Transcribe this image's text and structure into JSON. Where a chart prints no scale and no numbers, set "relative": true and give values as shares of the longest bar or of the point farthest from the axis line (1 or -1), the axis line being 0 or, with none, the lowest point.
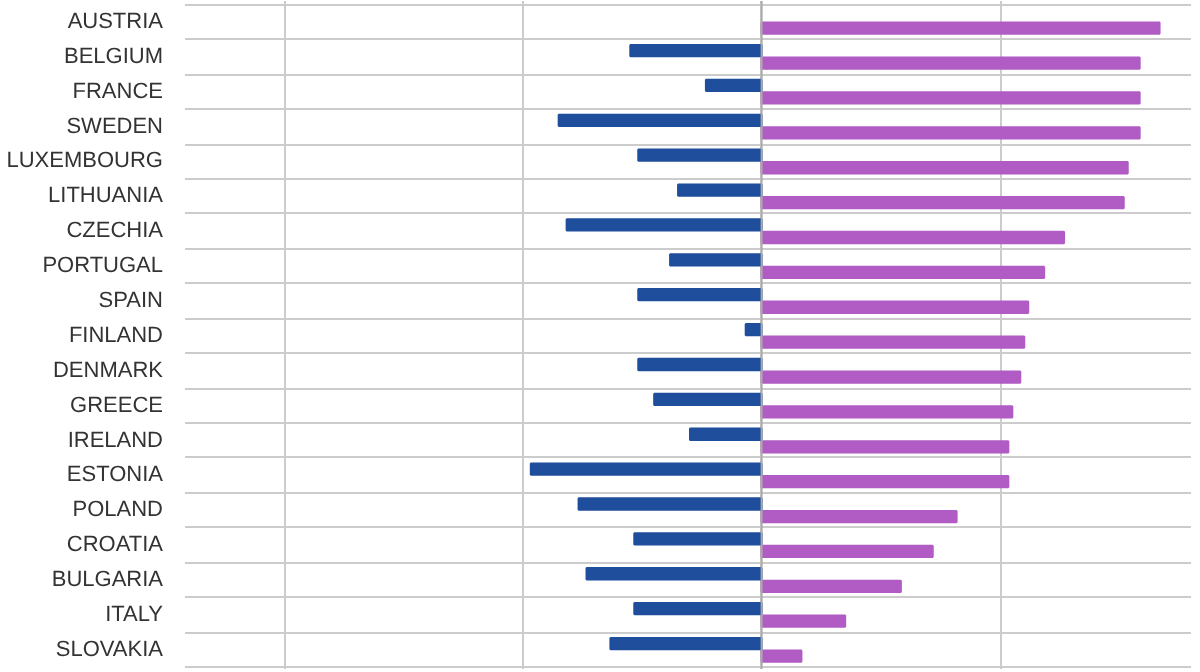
{
  "chart_data": {
    "type": "bar",
    "orientation": "horizontal",
    "relative": true,
    "grid": true,
    "categories": [
      "AUSTRIA",
      "BELGIUM",
      "FRANCE",
      "SWEDEN",
      "LUXEMBOURG",
      "LITHUANIA",
      "CZECHIA",
      "PORTUGAL",
      "SPAIN",
      "FINLAND",
      "DENMARK",
      "GREECE",
      "IRELAND",
      "ESTONIA",
      "POLAND",
      "CROATIA",
      "BULGARIA",
      "ITALY",
      "SLOVAKIA"
    ],
    "series": [
      {
        "color": "#1f4e9c",
        "values": [
          null,
          -0.33,
          -0.14,
          -0.51,
          -0.31,
          -0.21,
          -0.49,
          -0.23,
          -0.31,
          -0.04,
          -0.31,
          -0.27,
          -0.18,
          -0.58,
          -0.46,
          -0.32,
          -0.44,
          -0.32,
          -0.38
        ]
      },
      {
        "color": "#b05cc4",
        "values": [
          1,
          0.95,
          0.95,
          0.95,
          0.92,
          0.91,
          0.76,
          0.71,
          0.67,
          0.66,
          0.65,
          0.63,
          0.62,
          0.62,
          0.49,
          0.43,
          0.35,
          0.21,
          0.1
        ]
      }
    ]
  }
}
